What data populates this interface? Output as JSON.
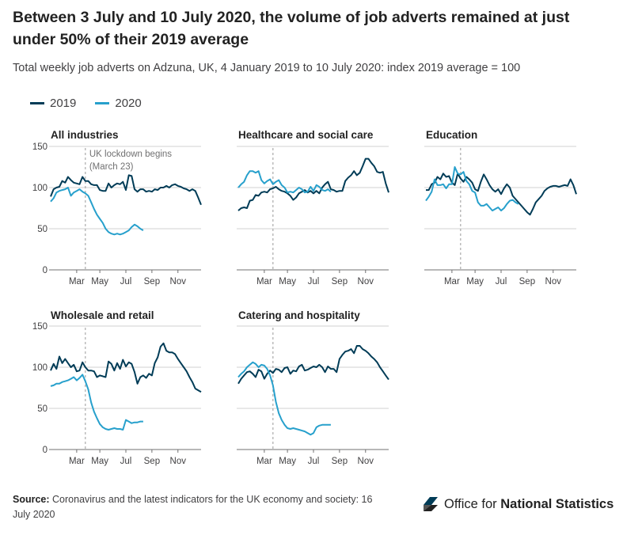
{
  "header": {
    "title": "Between 3 July and 10 July 2020, the volume of job adverts remained at just under 50% of their 2019 average",
    "subtitle": "Total weekly job adverts on Adzuna, UK, 4 January 2019 to 10 July 2020: index 2019 average = 100"
  },
  "legend": {
    "items": [
      {
        "label": "2019",
        "color": "#003c57"
      },
      {
        "label": "2020",
        "color": "#27a0cc"
      }
    ]
  },
  "footer": {
    "source_label": "Source:",
    "source_text": "Coronavirus and the latest indicators for the UK economy and society: 16 July 2020",
    "logo_text_normal": "Office for ",
    "logo_text_bold": "National Statistics"
  },
  "chart_data": [
    {
      "type": "line",
      "title": "All industries",
      "xlabel": "",
      "ylabel": "",
      "ylim": [
        0,
        150
      ],
      "yticks": [
        0,
        50,
        100,
        150
      ],
      "xticks": [
        "Mar",
        "May",
        "Jul",
        "Sep",
        "Nov"
      ],
      "annotation": {
        "label": [
          "UK lockdown begins",
          "(March 23)"
        ],
        "week": 12
      },
      "series": [
        {
          "name": "2019",
          "values": [
            89,
            98,
            100,
            101,
            108,
            106,
            113,
            109,
            106,
            105,
            104,
            113,
            108,
            108,
            104,
            103,
            103,
            97,
            96,
            96,
            105,
            100,
            103,
            105,
            104,
            107,
            97,
            115,
            114,
            98,
            95,
            98,
            98,
            95,
            96,
            95,
            98,
            97,
            100,
            100,
            102,
            100,
            103,
            104,
            102,
            101,
            99,
            98,
            96,
            98,
            96,
            88,
            79
          ]
        },
        {
          "name": "2020",
          "values": [
            83,
            87,
            94,
            96,
            97,
            98,
            100,
            90,
            94,
            96,
            98,
            95,
            93,
            90,
            82,
            74,
            67,
            62,
            57,
            50,
            46,
            44,
            43,
            44,
            43,
            44,
            46,
            48,
            52,
            55,
            53,
            50,
            48
          ]
        }
      ]
    },
    {
      "type": "line",
      "title": "Healthcare and social care",
      "xlabel": "",
      "ylabel": "",
      "ylim": [
        0,
        150
      ],
      "yticks": [
        0,
        50,
        100,
        150
      ],
      "xticks": [
        "Mar",
        "May",
        "Jul",
        "Sep",
        "Nov"
      ],
      "annotation": {
        "week": 12
      },
      "series": [
        {
          "name": "2019",
          "values": [
            72,
            75,
            76,
            75,
            84,
            85,
            91,
            90,
            94,
            95,
            94,
            98,
            99,
            101,
            98,
            96,
            95,
            93,
            90,
            85,
            88,
            93,
            95,
            97,
            94,
            96,
            93,
            96,
            93,
            100,
            104,
            107,
            98,
            97,
            95,
            96,
            96,
            108,
            112,
            115,
            120,
            115,
            118,
            126,
            135,
            135,
            130,
            126,
            119,
            118,
            119,
            105,
            94
          ]
        },
        {
          "name": "2020",
          "values": [
            100,
            104,
            107,
            115,
            120,
            120,
            118,
            120,
            109,
            105,
            108,
            110,
            104,
            107,
            109,
            103,
            100,
            94,
            95,
            94,
            97,
            100,
            98,
            94,
            95,
            101,
            96,
            103,
            101,
            97,
            96,
            98,
            95
          ]
        }
      ]
    },
    {
      "type": "line",
      "title": "Education",
      "xlabel": "",
      "ylabel": "",
      "ylim": [
        0,
        150
      ],
      "yticks": [
        0,
        50,
        100,
        150
      ],
      "xticks": [
        "Mar",
        "May",
        "Jul",
        "Sep",
        "Nov"
      ],
      "annotation": {
        "week": 12
      },
      "series": [
        {
          "name": "2019",
          "values": [
            97,
            97,
            104,
            106,
            113,
            110,
            117,
            113,
            114,
            106,
            103,
            117,
            111,
            107,
            113,
            110,
            106,
            98,
            96,
            107,
            116,
            110,
            103,
            98,
            95,
            98,
            92,
            99,
            104,
            100,
            90,
            86,
            82,
            78,
            74,
            70,
            67,
            74,
            82,
            86,
            90,
            96,
            99,
            101,
            102,
            102,
            101,
            102,
            103,
            102,
            110,
            103,
            92
          ]
        },
        {
          "name": "2020",
          "values": [
            84,
            89,
            95,
            110,
            103,
            103,
            104,
            99,
            104,
            104,
            125,
            117,
            116,
            119,
            108,
            104,
            96,
            94,
            82,
            78,
            78,
            80,
            76,
            72,
            74,
            76,
            72,
            75,
            80,
            84,
            85,
            82,
            80
          ]
        }
      ]
    },
    {
      "type": "line",
      "title": "Wholesale and retail",
      "xlabel": "",
      "ylabel": "",
      "ylim": [
        0,
        150
      ],
      "yticks": [
        0,
        50,
        100,
        150
      ],
      "xticks": [
        "Mar",
        "May",
        "Jul",
        "Sep",
        "Nov"
      ],
      "annotation": {
        "week": 12
      },
      "series": [
        {
          "name": "2019",
          "values": [
            96,
            104,
            98,
            113,
            105,
            110,
            105,
            100,
            103,
            95,
            96,
            106,
            100,
            96,
            96,
            95,
            88,
            90,
            89,
            88,
            107,
            104,
            96,
            105,
            98,
            109,
            101,
            106,
            104,
            94,
            80,
            88,
            90,
            87,
            92,
            90,
            105,
            112,
            125,
            129,
            120,
            118,
            118,
            116,
            110,
            105,
            100,
            95,
            88,
            82,
            74,
            72,
            70
          ]
        },
        {
          "name": "2020",
          "values": [
            77,
            78,
            80,
            80,
            82,
            83,
            84,
            86,
            88,
            84,
            87,
            91,
            83,
            73,
            57,
            46,
            38,
            31,
            27,
            25,
            24,
            25,
            26,
            25,
            25,
            24,
            36,
            34,
            32,
            33,
            33,
            34,
            34
          ]
        }
      ]
    },
    {
      "type": "line",
      "title": "Catering and hospitality",
      "xlabel": "",
      "ylabel": "",
      "ylim": [
        0,
        150
      ],
      "yticks": [
        0,
        50,
        100,
        150
      ],
      "xticks": [
        "Mar",
        "May",
        "Jul",
        "Sep",
        "Nov"
      ],
      "annotation": {
        "week": 12
      },
      "series": [
        {
          "name": "2019",
          "values": [
            80,
            86,
            90,
            94,
            95,
            92,
            88,
            97,
            95,
            86,
            92,
            96,
            93,
            98,
            97,
            94,
            99,
            100,
            92,
            96,
            95,
            101,
            103,
            96,
            97,
            99,
            101,
            100,
            103,
            100,
            94,
            101,
            98,
            98,
            94,
            110,
            115,
            119,
            120,
            122,
            117,
            126,
            126,
            122,
            120,
            117,
            113,
            110,
            106,
            100,
            95,
            90,
            85
          ]
        },
        {
          "name": "2020",
          "values": [
            88,
            92,
            95,
            100,
            103,
            106,
            104,
            100,
            103,
            102,
            98,
            90,
            78,
            58,
            44,
            36,
            30,
            26,
            25,
            26,
            25,
            24,
            23,
            22,
            20,
            18,
            20,
            27,
            29,
            30,
            30,
            30,
            30
          ]
        }
      ]
    }
  ]
}
